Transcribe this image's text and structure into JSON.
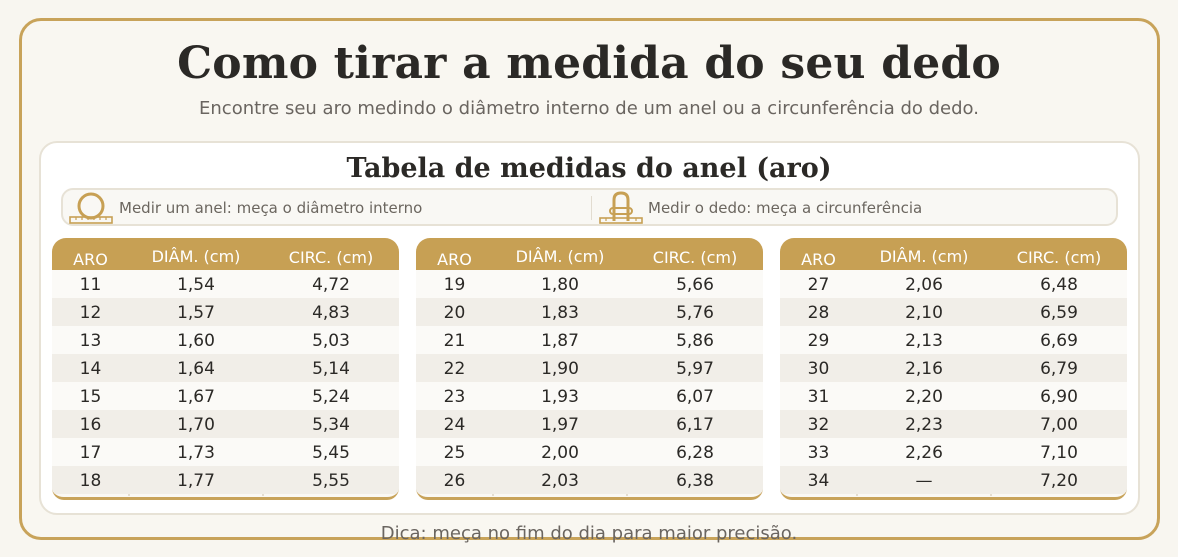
{
  "header": {
    "title": "Como tirar a medida do seu dedo",
    "subtitle": "Encontre seu aro medindo o diâmetro interno de um anel ou a circunferência do dedo."
  },
  "card": {
    "title": "Tabela de medidas do anel (aro)",
    "instructions": [
      {
        "icon": "ring-ruler-icon",
        "text": "Medir um anel: meça o diâmetro interno"
      },
      {
        "icon": "finger-ruler-icon",
        "text": "Medir o dedo: meça a circunferência"
      }
    ]
  },
  "table": {
    "columns": [
      "ARO",
      "DIÂM. (cm)",
      "CIRC. (cm)"
    ],
    "groups": [
      [
        [
          "11",
          "1,54",
          "4,72"
        ],
        [
          "12",
          "1,57",
          "4,83"
        ],
        [
          "13",
          "1,60",
          "5,03"
        ],
        [
          "14",
          "1,64",
          "5,14"
        ],
        [
          "15",
          "1,67",
          "5,24"
        ],
        [
          "16",
          "1,70",
          "5,34"
        ],
        [
          "17",
          "1,73",
          "5,45"
        ],
        [
          "18",
          "1,77",
          "5,55"
        ]
      ],
      [
        [
          "19",
          "1,80",
          "5,66"
        ],
        [
          "20",
          "1,83",
          "5,76"
        ],
        [
          "21",
          "1,87",
          "5,86"
        ],
        [
          "22",
          "1,90",
          "5,97"
        ],
        [
          "23",
          "1,93",
          "6,07"
        ],
        [
          "24",
          "1,97",
          "6,17"
        ],
        [
          "25",
          "2,00",
          "6,28"
        ],
        [
          "26",
          "2,03",
          "6,38"
        ]
      ],
      [
        [
          "27",
          "2,06",
          "6,48"
        ],
        [
          "28",
          "2,10",
          "6,59"
        ],
        [
          "29",
          "2,13",
          "6,69"
        ],
        [
          "30",
          "2,16",
          "6,79"
        ],
        [
          "31",
          "2,20",
          "6,90"
        ],
        [
          "32",
          "2,23",
          "7,00"
        ],
        [
          "33",
          "2,26",
          "7,10"
        ],
        [
          "34",
          "—",
          "7,20"
        ]
      ]
    ]
  },
  "footer": {
    "tip": "Dica: meça no fim do dia para maior precisão."
  },
  "colors": {
    "accent": "#c7a054",
    "background": "#f8f6f0"
  }
}
